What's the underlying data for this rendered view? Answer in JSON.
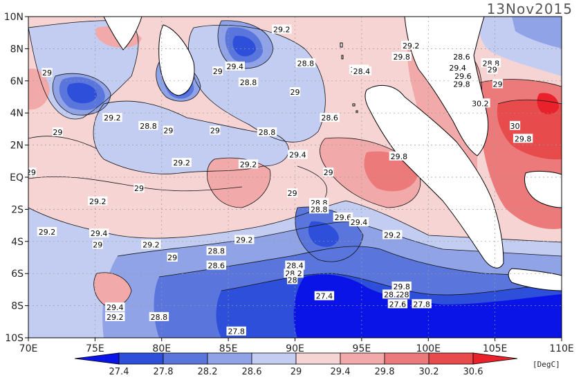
{
  "title": "13Nov2015",
  "map": {
    "lat_ticks": [
      "10N",
      "8N",
      "6N",
      "4N",
      "2N",
      "EQ",
      "2S",
      "4S",
      "6S",
      "8S",
      "10S"
    ],
    "lon_ticks": [
      "70E",
      "75E",
      "80E",
      "85E",
      "90E",
      "95E",
      "100E",
      "105E",
      "110E"
    ],
    "lat_range": [
      -10,
      10
    ],
    "lon_range": [
      70,
      110
    ],
    "grid": "dotted"
  },
  "colorbar": {
    "unit": "[DegC]",
    "labels": [
      "27.4",
      "27.8",
      "28.2",
      "28.6",
      "29",
      "29.4",
      "29.8",
      "30.2",
      "30.6"
    ],
    "colors": [
      "#0a14e6",
      "#2e4fd9",
      "#5a76dd",
      "#8fa3e6",
      "#c3cdf2",
      "#f6d4d4",
      "#f2a9a9",
      "#ec7a7a",
      "#e84b4b",
      "#e8212a"
    ]
  },
  "contour_labels": [
    {
      "text": "29.2",
      "lon": 89,
      "lat": 9.2
    },
    {
      "text": "29.2",
      "lon": 98.7,
      "lat": 8.2
    },
    {
      "text": "28.6",
      "lon": 102.5,
      "lat": 7.5
    },
    {
      "text": "28.8",
      "lon": 104.7,
      "lat": 7.1
    },
    {
      "text": "29.4",
      "lon": 102.2,
      "lat": 6.8
    },
    {
      "text": "29.6",
      "lon": 102.6,
      "lat": 6.3
    },
    {
      "text": "29",
      "lon": 104.8,
      "lat": 6.7
    },
    {
      "text": "29.8",
      "lon": 102.5,
      "lat": 5.8
    },
    {
      "text": "29",
      "lon": 105.2,
      "lat": 5.8
    },
    {
      "text": "29.4",
      "lon": 85.5,
      "lat": 6.9
    },
    {
      "text": "29",
      "lon": 84.2,
      "lat": 6.6
    },
    {
      "text": "28.8",
      "lon": 90.8,
      "lat": 7.1
    },
    {
      "text": "29.4",
      "lon": 94.8,
      "lat": 6.7
    },
    {
      "text": "28.8",
      "lon": 86.5,
      "lat": 5.9
    },
    {
      "text": "29",
      "lon": 71.4,
      "lat": 6.5
    },
    {
      "text": "29",
      "lon": 90,
      "lat": 5.3
    },
    {
      "text": "30.2",
      "lon": 103.9,
      "lat": 4.6
    },
    {
      "text": "30",
      "lon": 106.5,
      "lat": 3.2
    },
    {
      "text": "29.8",
      "lon": 107.1,
      "lat": 2.4
    },
    {
      "text": "28.6",
      "lon": 92.6,
      "lat": 3.7
    },
    {
      "text": "29.2",
      "lon": 76.3,
      "lat": 3.7
    },
    {
      "text": "28.8",
      "lon": 79,
      "lat": 3.2
    },
    {
      "text": "29",
      "lon": 80.5,
      "lat": 2.9
    },
    {
      "text": "29",
      "lon": 84,
      "lat": 2.9
    },
    {
      "text": "28.8",
      "lon": 87.9,
      "lat": 2.8
    },
    {
      "text": "29",
      "lon": 72.2,
      "lat": 2.8
    },
    {
      "text": "29.4",
      "lon": 90.2,
      "lat": 1.4
    },
    {
      "text": "29.8",
      "lon": 97.8,
      "lat": 1.3
    },
    {
      "text": "29.2",
      "lon": 81.5,
      "lat": 0.9
    },
    {
      "text": "29.2",
      "lon": 86.5,
      "lat": 0.8
    },
    {
      "text": "29",
      "lon": 92.5,
      "lat": 0.3
    },
    {
      "text": "29",
      "lon": 70.2,
      "lat": 0.3
    },
    {
      "text": "29",
      "lon": 78.3,
      "lat": -0.7
    },
    {
      "text": "29",
      "lon": 89.8,
      "lat": -1
    },
    {
      "text": "28.8",
      "lon": 91.8,
      "lat": -1.6
    },
    {
      "text": "28.8",
      "lon": 91.8,
      "lat": -2
    },
    {
      "text": "29.2",
      "lon": 75.2,
      "lat": -1.5
    },
    {
      "text": "29.6",
      "lon": 93.6,
      "lat": -2.5
    },
    {
      "text": "29.4",
      "lon": 94.8,
      "lat": -2.8
    },
    {
      "text": "29.2",
      "lon": 71.4,
      "lat": -3.4
    },
    {
      "text": "29.4",
      "lon": 75.3,
      "lat": -3.5
    },
    {
      "text": "29.2",
      "lon": 97.3,
      "lat": -3.6
    },
    {
      "text": "29.2",
      "lon": 86.2,
      "lat": -3.9
    },
    {
      "text": "29",
      "lon": 75.2,
      "lat": -4.2
    },
    {
      "text": "29.2",
      "lon": 79.2,
      "lat": -4.2
    },
    {
      "text": "28.8",
      "lon": 84.1,
      "lat": -4.6
    },
    {
      "text": "29",
      "lon": 80.8,
      "lat": -5
    },
    {
      "text": "28.6",
      "lon": 84.1,
      "lat": -5.5
    },
    {
      "text": "28.4",
      "lon": 90,
      "lat": -5.5
    },
    {
      "text": "28.2",
      "lon": 89.9,
      "lat": -6
    },
    {
      "text": "28",
      "lon": 89.8,
      "lat": -6.4
    },
    {
      "text": "27.4",
      "lon": 92.2,
      "lat": -7.4
    },
    {
      "text": "29.8",
      "lon": 98,
      "lat": -6.8
    },
    {
      "text": "28.2",
      "lon": 97.3,
      "lat": -7.3
    },
    {
      "text": "28",
      "lon": 98.2,
      "lat": -7.3
    },
    {
      "text": "27.6",
      "lon": 97.7,
      "lat": -7.9
    },
    {
      "text": "27.8",
      "lon": 99.5,
      "lat": -7.9
    },
    {
      "text": "29.4",
      "lon": 76.5,
      "lat": -8.1
    },
    {
      "text": "29.2",
      "lon": 76.5,
      "lat": -8.7
    },
    {
      "text": "28.8",
      "lon": 79.8,
      "lat": -8.7
    },
    {
      "text": "27.8",
      "lon": 85.6,
      "lat": -9.6
    },
    {
      "text": "28.4",
      "lon": 95,
      "lat": 6.6
    },
    {
      "text": "29.8",
      "lon": 98,
      "lat": 7.5
    }
  ]
}
